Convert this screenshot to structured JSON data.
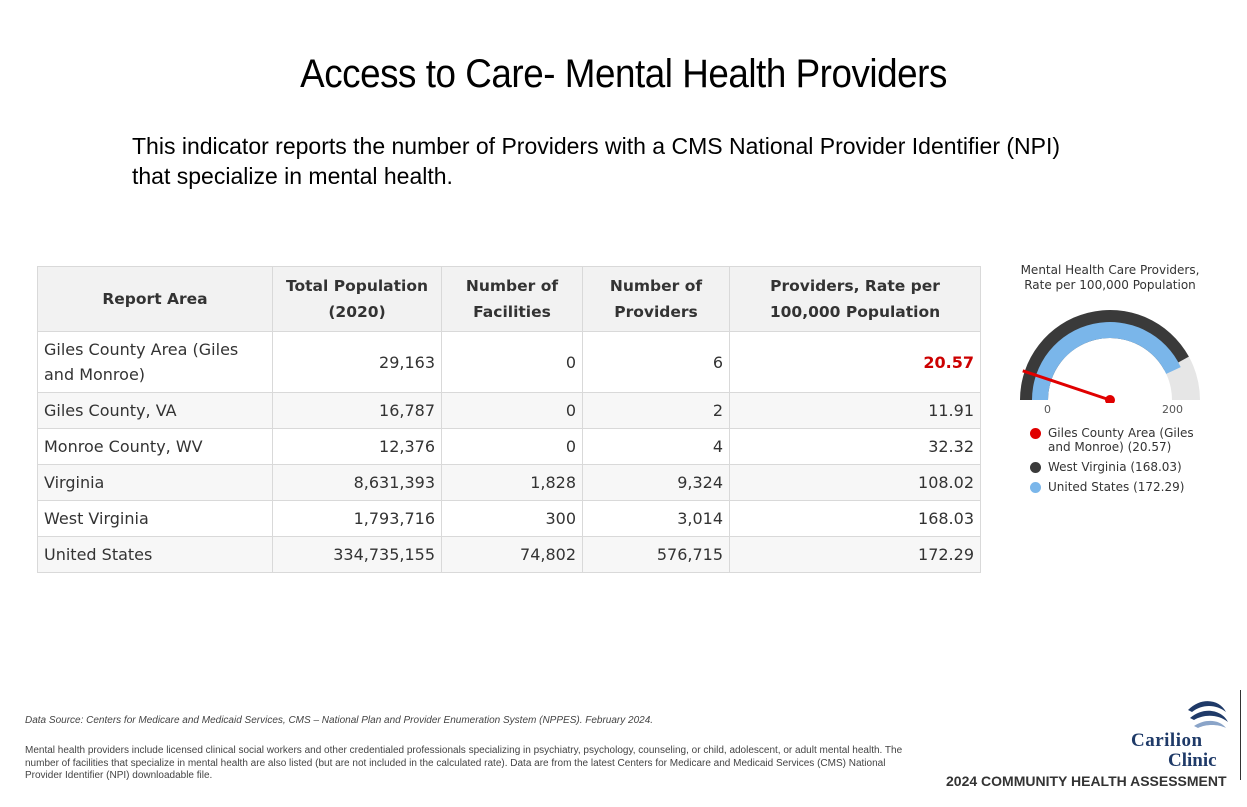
{
  "title": "Access to Care- Mental Health Providers",
  "intro": "This indicator reports the number of Providers with a CMS National Provider Identifier (NPI) that specialize in mental health.",
  "table": {
    "headers": [
      "Report Area",
      "Total Population (2020)",
      "Number of Facilities",
      "Number of Providers",
      "Providers, Rate per 100,000 Population"
    ],
    "rows": [
      [
        "Giles County Area (Giles and Monroe)",
        "29,163",
        "0",
        "6",
        "20.57"
      ],
      [
        "Giles County, VA",
        "16,787",
        "0",
        "2",
        "11.91"
      ],
      [
        "Monroe County, WV",
        "12,376",
        "0",
        "4",
        "32.32"
      ],
      [
        "Virginia",
        "8,631,393",
        "1,828",
        "9,324",
        "108.02"
      ],
      [
        "West Virginia",
        "1,793,716",
        "300",
        "3,014",
        "168.03"
      ],
      [
        "United States",
        "334,735,155",
        "74,802",
        "576,715",
        "172.29"
      ]
    ]
  },
  "chart_data": {
    "type": "gauge",
    "title": "Mental Health Care Providers, Rate per 100,000 Population",
    "range": [
      0,
      200
    ],
    "tick_labels": [
      "0",
      "200"
    ],
    "series": [
      {
        "name": "Giles County Area (Giles and Monroe) (20.57)",
        "value": 20.57,
        "color": "#e00000",
        "style": "needle"
      },
      {
        "name": "West Virginia (168.03)",
        "value": 168.03,
        "color": "#3a3a3a",
        "style": "outer-arc"
      },
      {
        "name": "United States (172.29)",
        "value": 172.29,
        "color": "#7ab6ea",
        "style": "inner-arc"
      }
    ],
    "track_color": "#e6e6e6"
  },
  "source": "Data Source: Centers for Medicare and Medicaid Services, CMS – National Plan and Provider Enumeration System (NPPES). February 2024.",
  "note": "Mental health providers include licensed clinical social workers and other credentialed professionals specializing in psychiatry, psychology, counseling, or child, adolescent, or adult mental health. The number of facilities that specialize in mental health are also listed (but are not included in the calculated rate). Data are from the latest Centers for Medicare and Medicaid Services (CMS) National Provider Identifier (NPI) downloadable file.",
  "logo": {
    "word1": "Carilion",
    "word2": "Clinic"
  },
  "footer": "2024 COMMUNITY HEALTH ASSESSMENT",
  "colors": {
    "highlight": "#cc0000",
    "brand": "#1f3a68"
  }
}
